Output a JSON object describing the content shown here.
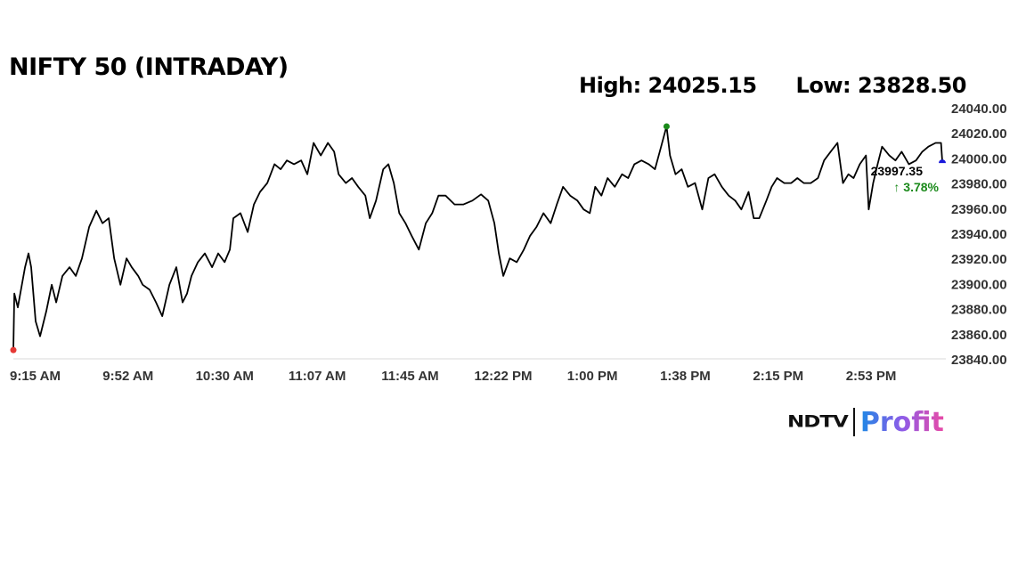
{
  "chart_data": {
    "type": "line",
    "title": "NIFTY 50 (INTRADAY)",
    "high_label": "High: 24025.15",
    "low_label": "Low: 23828.50",
    "last_value_label": "23997.35",
    "change_label": "↑ 3.78%",
    "ylim": [
      23840,
      24040
    ],
    "yticks": [
      "24040.00",
      "24020.00",
      "24000.00",
      "23980.00",
      "23960.00",
      "23940.00",
      "23920.00",
      "23900.00",
      "23880.00",
      "23860.00",
      "23840.00"
    ],
    "ytick_values": [
      24040,
      24020,
      24000,
      23980,
      23960,
      23940,
      23920,
      23900,
      23880,
      23860,
      23840
    ],
    "xlim_minutes_since_open": [
      0,
      375
    ],
    "xticks": [
      "9:15 AM",
      "9:52 AM",
      "10:30 AM",
      "11:07 AM",
      "11:45 AM",
      "12:22 PM",
      "1:00 PM",
      "1:38 PM",
      "2:15 PM",
      "2:53 PM"
    ],
    "xtick_minutes": [
      0,
      37.5,
      75,
      112.5,
      150,
      187.5,
      225,
      262.5,
      300,
      337.5
    ],
    "series": [
      {
        "name": "NIFTY 50",
        "color": "#000000",
        "x": [
          0,
          0.4,
          1.8,
          4.7,
          6.1,
          7.2,
          9,
          10.8,
          13.3,
          15.5,
          17.3,
          19.8,
          22.7,
          25.2,
          27.7,
          30.6,
          33.5,
          36,
          38.5,
          40.7,
          43.2,
          45.7,
          47.8,
          50.4,
          52.2,
          55,
          57.6,
          60.1,
          63,
          65.8,
          68.3,
          70.1,
          71.9,
          74.5,
          77.3,
          80.2,
          82.7,
          85.3,
          87.4,
          88.8,
          91.7,
          94.6,
          97.1,
          99.6,
          102.5,
          105.4,
          107.9,
          110.4,
          113.3,
          116.2,
          118.7,
          121.2,
          124.1,
          127,
          129.5,
          131.3,
          134.2,
          136.7,
          139.2,
          142.1,
          143.9,
          146.4,
          149.3,
          151.4,
          153.6,
          155.8,
          158.3,
          160.8,
          163.7,
          166.5,
          169.1,
          171.6,
          174.5,
          178.1,
          181.7,
          185.3,
          188.8,
          191.7,
          194.2,
          196,
          197.8,
          200.4,
          203.2,
          206.1,
          208.6,
          211.2,
          214,
          216.9,
          219.4,
          221.9,
          224.8,
          227.7,
          230.2,
          232.7,
          234.9,
          237.4,
          239.9,
          242.8,
          245.7,
          248.2,
          250.7,
          253.6,
          256.5,
          259,
          261.5,
          263.7,
          265.1,
          267.3,
          269.8,
          272.3,
          275.2,
          278.1,
          280.6,
          283.1,
          286,
          288.8,
          291.4,
          293.9,
          296.8,
          298.9,
          301.1,
          304,
          306.1,
          308.3,
          311.2,
          314,
          316.5,
          319.1,
          321.9,
          324.8,
          327.3,
          329.9,
          332.7,
          334.9,
          337.1,
          339.2,
          341.7,
          344.2,
          345.3,
          347.1,
          348.9,
          350.7,
          353.6,
          356.1,
          358.6,
          361.5,
          364.4,
          366.9,
          369.4,
          372.3,
          374.5,
          375
        ],
        "values": [
          23847,
          23892,
          23881,
          23913,
          23924,
          23913,
          23870,
          23858,
          23878,
          23899,
          23885,
          23906,
          23913,
          23906,
          23920,
          23945,
          23958,
          23948,
          23952,
          23920,
          23899,
          23920,
          23913,
          23906,
          23899,
          23895,
          23885,
          23874,
          23899,
          23913,
          23885,
          23892,
          23906,
          23917,
          23924,
          23913,
          23924,
          23917,
          23927,
          23952,
          23956,
          23941,
          23963,
          23973,
          23980,
          23995,
          23991,
          23998,
          23995,
          23998,
          23987,
          24012,
          24002,
          24012,
          24005,
          23987,
          23980,
          23984,
          23977,
          23970,
          23952,
          23966,
          23991,
          23995,
          23980,
          23956,
          23948,
          23938,
          23927,
          23948,
          23956,
          23970,
          23970,
          23963,
          23963,
          23966,
          23971,
          23966,
          23948,
          23924,
          23906,
          23920,
          23917,
          23927,
          23938,
          23945,
          23956,
          23948,
          23963,
          23977,
          23970,
          23966,
          23959,
          23956,
          23977,
          23970,
          23984,
          23977,
          23987,
          23984,
          23995,
          23998,
          23995,
          23991,
          24009,
          24025.15,
          24002,
          23987,
          23991,
          23977,
          23980,
          23959,
          23984,
          23987,
          23977,
          23970,
          23966,
          23959,
          23973,
          23952,
          23952,
          23966,
          23977,
          23984,
          23980,
          23980,
          23984,
          23980,
          23980,
          23984,
          23998,
          24005,
          24012,
          23980,
          23987,
          23984,
          23995,
          24002,
          23959,
          23980,
          23995,
          24009,
          24002,
          23998,
          24005,
          23995,
          23998,
          24005,
          24009,
          24012,
          24012,
          23997.35
        ]
      }
    ],
    "markers": {
      "open_color": "#e53935",
      "high_color": "#1b8a1b",
      "last_color": "#1a1adb",
      "change_color": "#1b8a1b"
    },
    "grid": false
  },
  "brand": {
    "left": "NDTV",
    "right": "Profit"
  }
}
